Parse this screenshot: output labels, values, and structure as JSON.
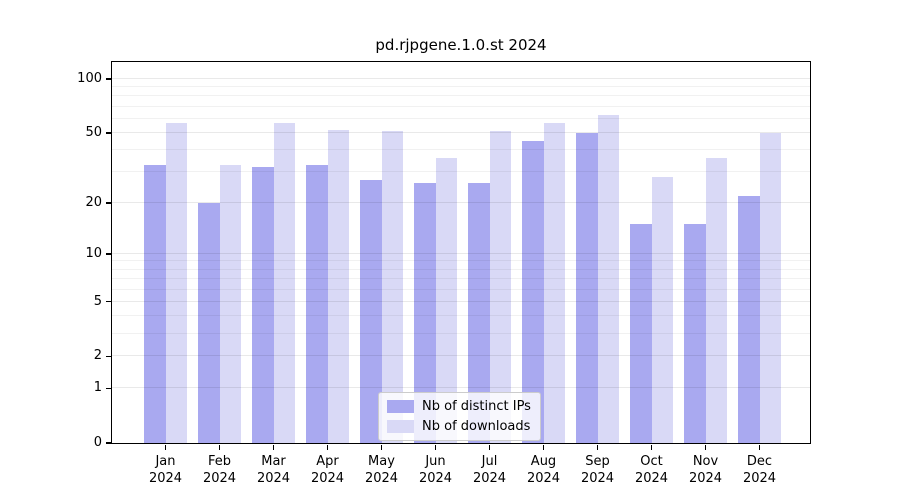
{
  "chart_data": {
    "type": "bar",
    "title": "pd.rjpgene.1.0.st 2024",
    "categories": [
      "Jan 2024",
      "Feb 2024",
      "Mar 2024",
      "Apr 2024",
      "May 2024",
      "Jun 2024",
      "Jul 2024",
      "Aug 2024",
      "Sep 2024",
      "Oct 2024",
      "Nov 2024",
      "Dec 2024"
    ],
    "series": [
      {
        "name": "Nb of distinct IPs",
        "color": "#a9a9f0",
        "values": [
          33,
          20,
          32,
          33,
          27,
          26,
          26,
          45,
          50,
          15,
          15,
          22
        ]
      },
      {
        "name": "Nb of downloads",
        "color": "#d9d9f6",
        "values": [
          57,
          33,
          57,
          52,
          51,
          36,
          51,
          57,
          63,
          28,
          36,
          50
        ]
      }
    ],
    "yscale": "log1p",
    "ylim": [
      0,
      125
    ],
    "yticks": [
      100,
      50,
      20,
      10,
      5,
      2,
      1,
      0
    ],
    "minor_gridlines": [
      3,
      4,
      6,
      7,
      8,
      9,
      30,
      40,
      60,
      70,
      80,
      90
    ],
    "grid": true,
    "grid_over_bars": true,
    "legend_position": "inside-bottom-center",
    "axis_color": "#000000",
    "background_color": "#ffffff"
  }
}
